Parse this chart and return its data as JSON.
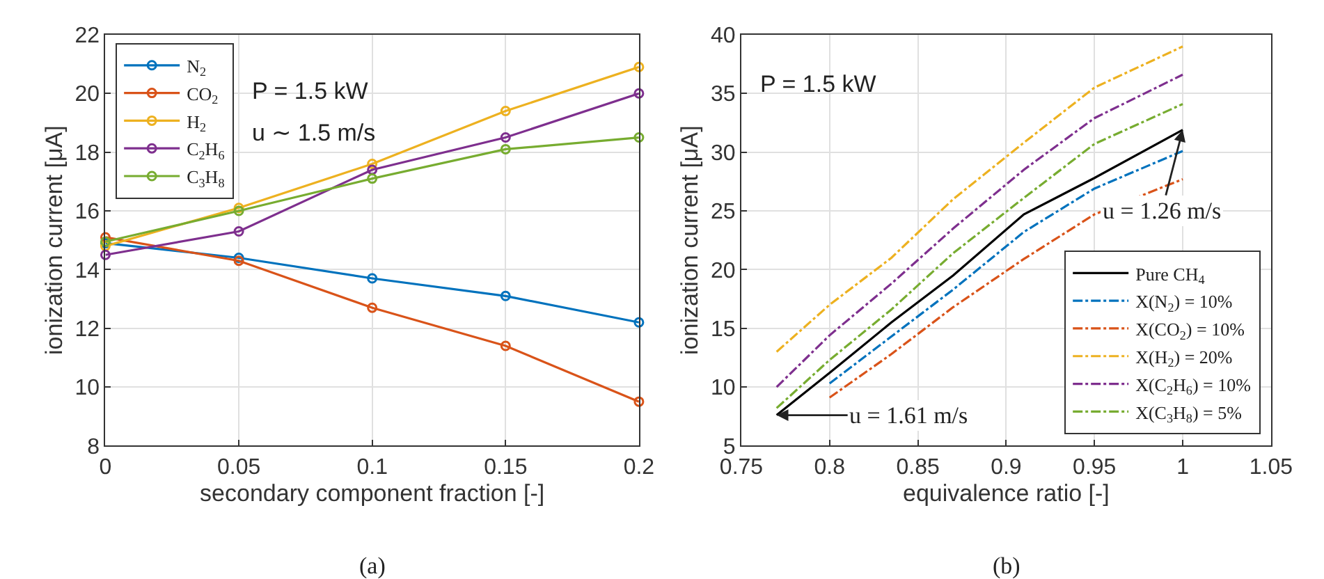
{
  "chart_data": [
    {
      "type": "line",
      "xlabel": "secondary component fraction [-]",
      "ylabel": "ionization current [μA]",
      "x": [
        0,
        0.05,
        0.1,
        0.15,
        0.2
      ],
      "series": [
        {
          "name": "N$_{2}$",
          "color": "#0072bd",
          "values": [
            14.9,
            14.4,
            13.7,
            13.1,
            12.2
          ]
        },
        {
          "name": "CO$_{2}$",
          "color": "#d95319",
          "values": [
            15.1,
            14.3,
            12.7,
            11.4,
            9.5
          ]
        },
        {
          "name": "H$_{2}$",
          "color": "#edb120",
          "values": [
            14.8,
            16.1,
            17.6,
            19.4,
            20.9
          ]
        },
        {
          "name": "C$_{2}$H$_{6}$",
          "color": "#7e2f8e",
          "values": [
            14.5,
            15.3,
            17.4,
            18.5,
            20.0
          ]
        },
        {
          "name": "C$_{3}$H$_{8}$",
          "color": "#77ac30",
          "values": [
            14.95,
            16.0,
            17.1,
            18.1,
            18.5
          ]
        }
      ],
      "xlim": [
        0,
        0.2
      ],
      "xticks": [
        0,
        0.05,
        0.1,
        0.15,
        0.2
      ],
      "ylim": [
        8,
        22
      ],
      "yticks": [
        8,
        10,
        12,
        14,
        16,
        18,
        20,
        22
      ],
      "grid": true,
      "legend": "top left",
      "marker": "circle",
      "line_style": "solid",
      "annotations": [
        "P = 1.5 kW",
        "u ∼ 1.5 m/s",
        "(a)"
      ]
    },
    {
      "type": "line",
      "xlabel": "equivalence ratio [-]",
      "ylabel": "ionization current [μA]",
      "series": [
        {
          "name": "Pure CH$_{4}$",
          "color": "#000000",
          "line_style": "solid",
          "x": [
            0.77,
            0.8,
            0.835,
            0.87,
            0.91,
            0.95,
            1.0
          ],
          "values": [
            7.6,
            11.2,
            15.5,
            19.5,
            24.7,
            27.8,
            31.9
          ]
        },
        {
          "name": "X(N$_{2}$) = 10%",
          "color": "#0072bd",
          "line_style": "dashed",
          "x": [
            0.8,
            0.835,
            0.87,
            0.91,
            0.95,
            1.0
          ],
          "values": [
            10.3,
            14.3,
            18.3,
            23.2,
            26.9,
            30.1
          ]
        },
        {
          "name": "X(CO$_{2}$) = 10%",
          "color": "#d95319",
          "line_style": "dashed",
          "x": [
            0.8,
            0.835,
            0.87,
            0.91,
            0.95,
            1.0
          ],
          "values": [
            9.1,
            12.8,
            16.8,
            20.9,
            24.7,
            27.7
          ]
        },
        {
          "name": "X(H$_{2}$) = 20%",
          "color": "#edb120",
          "line_style": "dashed",
          "x": [
            0.77,
            0.8,
            0.835,
            0.87,
            0.91,
            0.95,
            1.0
          ],
          "values": [
            13.0,
            17.0,
            21.0,
            26.0,
            30.8,
            35.5,
            39.0
          ]
        },
        {
          "name": "X(C$_{2}$H$_{6}$) = 10%",
          "color": "#7e2f8e",
          "line_style": "dashed",
          "x": [
            0.77,
            0.8,
            0.835,
            0.87,
            0.91,
            0.95,
            1.0
          ],
          "values": [
            10.0,
            14.4,
            18.8,
            23.5,
            28.5,
            32.9,
            36.6
          ]
        },
        {
          "name": "X(C$_{3}$H$_{8}$) = 5%",
          "color": "#77ac30",
          "line_style": "dashed",
          "x": [
            0.77,
            0.8,
            0.835,
            0.87,
            0.91,
            0.95,
            1.0
          ],
          "values": [
            8.2,
            12.3,
            16.6,
            21.4,
            26.1,
            30.7,
            34.1
          ]
        }
      ],
      "xlim": [
        0.75,
        1.05
      ],
      "xticks": [
        0.75,
        0.8,
        0.85,
        0.9,
        0.95,
        1,
        1.05
      ],
      "ylim": [
        5,
        40
      ],
      "yticks": [
        5,
        10,
        15,
        20,
        25,
        30,
        35,
        40
      ],
      "grid": true,
      "legend": "bottom right",
      "marker": "none",
      "annotations": [
        "P = 1.5 kW",
        {
          "text": "u = 1.61 m/s",
          "x": 0.77,
          "y": 7.6
        },
        {
          "text": "u = 1.26 m/s",
          "x": 1.0,
          "y": 31.9
        },
        "(b)"
      ]
    }
  ]
}
